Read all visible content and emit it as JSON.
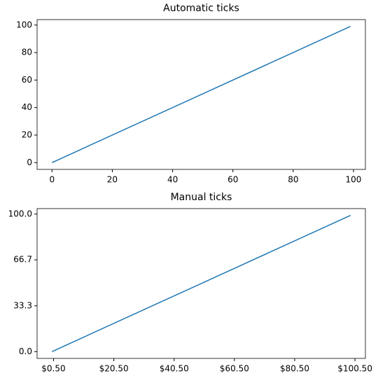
{
  "chart_data": [
    {
      "type": "line",
      "title": "Automatic ticks",
      "x": [
        0,
        99
      ],
      "values": [
        0,
        99
      ],
      "color": "#1f77b4",
      "xlim": [
        -4.95,
        103.95
      ],
      "ylim": [
        -4.95,
        103.95
      ],
      "xticks": [
        0,
        20,
        40,
        60,
        80,
        100
      ],
      "yticks": [
        0,
        20,
        40,
        60,
        80,
        100
      ]
    },
    {
      "type": "line",
      "title": "Manual ticks",
      "x": [
        0,
        99
      ],
      "values": [
        0,
        99
      ],
      "color": "#1f77b4",
      "xlim": [
        -4.95,
        103.95
      ],
      "ylim": [
        -4.95,
        103.95
      ],
      "xticks": [
        {
          "value": 0.5,
          "label": "$0.50"
        },
        {
          "value": 20.5,
          "label": "$20.50"
        },
        {
          "value": 40.5,
          "label": "$40.50"
        },
        {
          "value": 60.5,
          "label": "$60.50"
        },
        {
          "value": 80.5,
          "label": "$80.50"
        },
        {
          "value": 100.5,
          "label": "$100.50"
        }
      ],
      "yticks": [
        {
          "value": 0,
          "label": "0.0"
        },
        33.3,
        66.7,
        {
          "value": 100,
          "label": "100.0"
        }
      ]
    }
  ]
}
